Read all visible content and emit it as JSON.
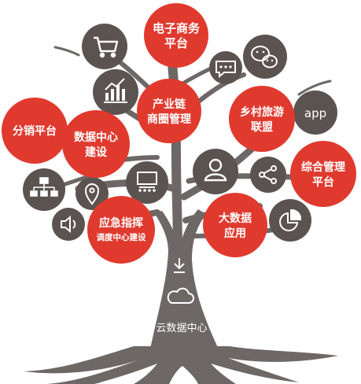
{
  "diagram": {
    "colors": {
      "red": "#e03a2f",
      "dark": "#5b5350",
      "trunk": "#6d6766",
      "text": "#ffffff"
    },
    "red_nodes": [
      {
        "id": "ecommerce",
        "lines": [
          "电子商务",
          "平台"
        ]
      },
      {
        "id": "industry-chain",
        "lines": [
          "产业链",
          "商圈管理"
        ]
      },
      {
        "id": "rural-tourism",
        "lines": [
          "乡村旅游",
          "联盟"
        ]
      },
      {
        "id": "distribution",
        "lines": [
          "分销平台"
        ]
      },
      {
        "id": "data-center",
        "lines": [
          "数据中心",
          "建设"
        ]
      },
      {
        "id": "integrated-mgmt",
        "lines": [
          "综合管理",
          "平台"
        ]
      },
      {
        "id": "big-data",
        "lines": [
          "大数据",
          "应用"
        ]
      },
      {
        "id": "emergency",
        "lines": [
          "应急指挥",
          "调度中心建设"
        ]
      }
    ],
    "icon_nodes": [
      {
        "id": "cart",
        "icon": "shopping-cart-icon"
      },
      {
        "id": "chart",
        "icon": "bar-chart-icon"
      },
      {
        "id": "chat",
        "icon": "chat-bubble-icon"
      },
      {
        "id": "wechat",
        "icon": "wechat-icon"
      },
      {
        "id": "app",
        "icon": "app-text-icon",
        "text": "app"
      },
      {
        "id": "user",
        "icon": "user-icon"
      },
      {
        "id": "share",
        "icon": "share-icon"
      },
      {
        "id": "presentation",
        "icon": "presentation-icon"
      },
      {
        "id": "orgchart",
        "icon": "org-chart-icon"
      },
      {
        "id": "location",
        "icon": "location-pin-icon"
      },
      {
        "id": "speaker",
        "icon": "speaker-icon"
      },
      {
        "id": "pie",
        "icon": "pie-chart-icon"
      }
    ],
    "root": {
      "arrow_icon": "download-arrow-icon",
      "cloud_icon": "cloud-icon",
      "label": "云数据中心"
    }
  }
}
